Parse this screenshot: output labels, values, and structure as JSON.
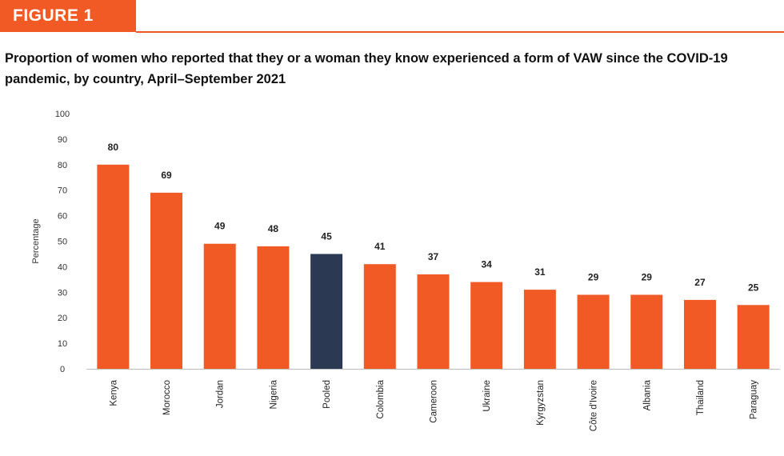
{
  "figure": {
    "label": "FIGURE 1",
    "title": "Proportion of women who reported that they or a woman they know experienced a form of VAW since the COVID-19 pandemic, by country, April–September 2021"
  },
  "colors": {
    "accent": "#f15a24",
    "bar": "#f15a24",
    "highlight": "#2b3a52",
    "text": "#111111"
  },
  "chart_data": {
    "type": "bar",
    "title": "Proportion of women who reported that they or a woman they know experienced a form of VAW since the COVID-19 pandemic, by country, April–September 2021",
    "xlabel": "",
    "ylabel": "Percentage",
    "ylim": [
      0,
      100
    ],
    "yticks": [
      0,
      10,
      20,
      30,
      40,
      50,
      60,
      70,
      80,
      90,
      100
    ],
    "grid": false,
    "categories": [
      "Kenya",
      "Morocco",
      "Jordan",
      "Nigeria",
      "Pooled",
      "Colombia",
      "Cameroon",
      "Ukraine",
      "Kyrgyzstan",
      "Côte d'Ivoire",
      "Albania",
      "Thailand",
      "Paraguay"
    ],
    "values": [
      80,
      69,
      49,
      48,
      45,
      41,
      37,
      34,
      31,
      29,
      29,
      27,
      25
    ],
    "highlight_category": "Pooled"
  }
}
